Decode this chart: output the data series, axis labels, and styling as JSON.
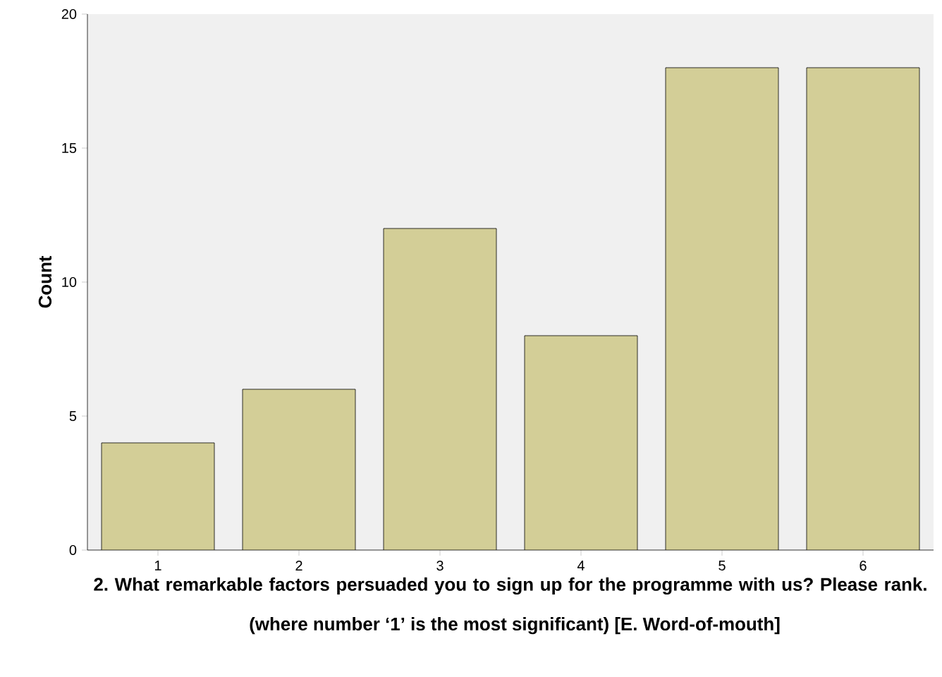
{
  "chart_data": {
    "type": "bar",
    "ylabel": "Count",
    "xlabel": "2. What remarkable factors persuaded you to sign up for the programme with us? Please rank.",
    "annotations": [
      "(where number ‘1’ is the most significant) [E. Word-of-mouth]"
    ],
    "categories": [
      "1",
      "2",
      "3",
      "4",
      "5",
      "6"
    ],
    "values": [
      4,
      6,
      12,
      8,
      18,
      18
    ],
    "color": "#d3ce97",
    "ylim": [
      0,
      20
    ],
    "yticks": [
      0,
      5,
      10,
      15,
      20
    ],
    "grid": false
  }
}
